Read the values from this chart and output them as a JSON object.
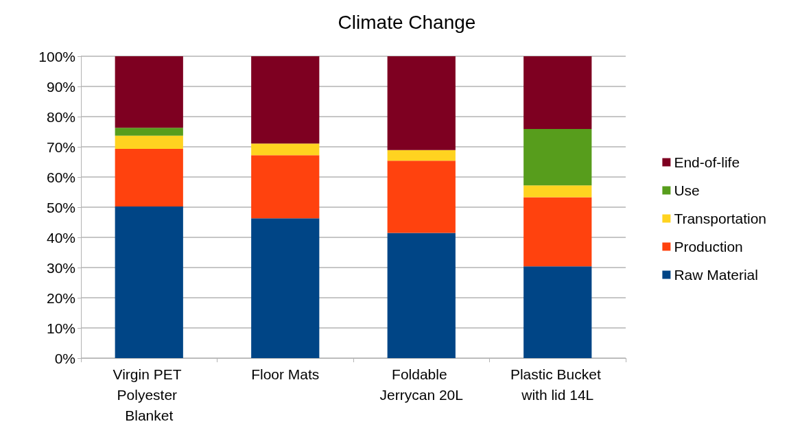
{
  "chart_data": {
    "type": "bar",
    "title": "Climate Change",
    "stacked": true,
    "categories": [
      "Virgin PET Polyester Blanket",
      "Floor Mats",
      "Foldable Jerrycan 20L",
      "Plastic Bucket with lid 14L"
    ],
    "series": [
      {
        "name": "Raw Material",
        "color": "#004586",
        "values": [
          50.2,
          46.3,
          41.5,
          30.4
        ]
      },
      {
        "name": "Production",
        "color": "#ff420e",
        "values": [
          19.1,
          20.9,
          23.9,
          22.9
        ]
      },
      {
        "name": "Transportation",
        "color": "#ffd320",
        "values": [
          4.4,
          3.9,
          3.5,
          3.9
        ]
      },
      {
        "name": "Use",
        "color": "#579d1c",
        "values": [
          2.6,
          0,
          0,
          18.7
        ]
      },
      {
        "name": "End-of-life",
        "color": "#7e0021",
        "values": [
          23.7,
          28.9,
          31.1,
          24.1
        ]
      }
    ],
    "ylim": [
      0,
      100
    ],
    "yticks": [
      {
        "value": 0,
        "label": "0%"
      },
      {
        "value": 10,
        "label": "10%"
      },
      {
        "value": 20,
        "label": "20%"
      },
      {
        "value": 30,
        "label": "30%"
      },
      {
        "value": 40,
        "label": "40%"
      },
      {
        "value": 50,
        "label": "50%"
      },
      {
        "value": 60,
        "label": "60%"
      },
      {
        "value": 70,
        "label": "70%"
      },
      {
        "value": 80,
        "label": "80%"
      },
      {
        "value": 90,
        "label": "90%"
      },
      {
        "value": 100,
        "label": "100%"
      }
    ],
    "grid": "y",
    "legend": "right"
  }
}
